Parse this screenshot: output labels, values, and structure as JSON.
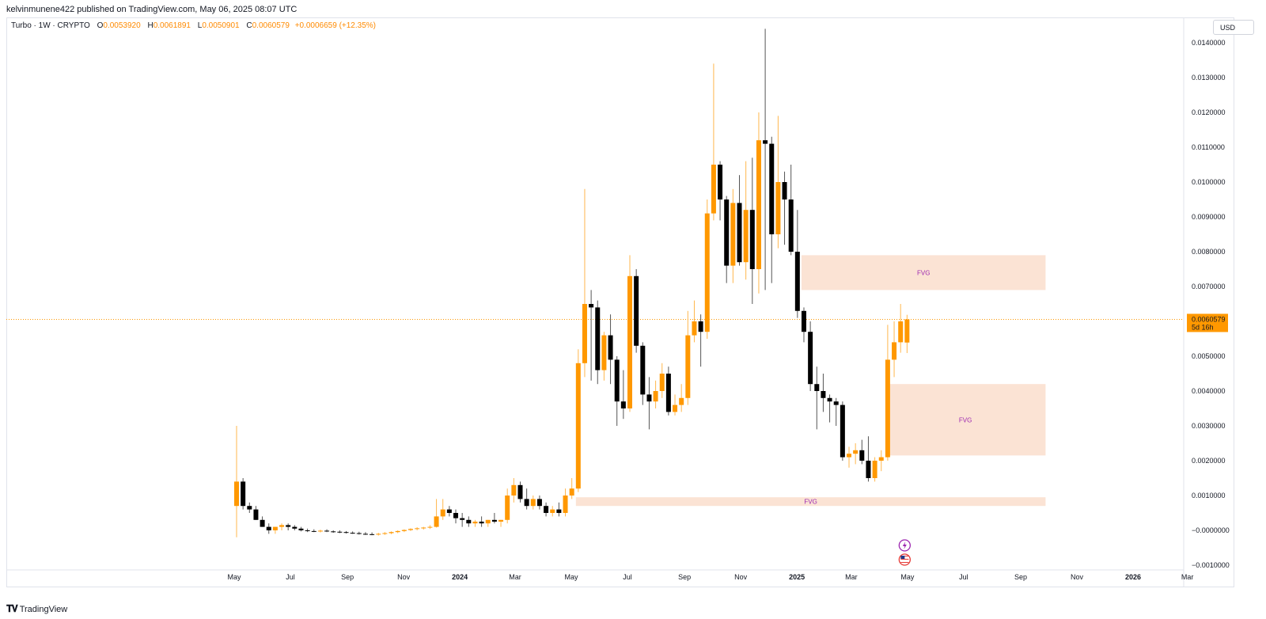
{
  "header": {
    "published": "kelvinmunene422 published on TradingView.com, May 06, 2025 08:07 UTC"
  },
  "legend": {
    "symbol": "Turbo · 1W · CRYPTO",
    "o_label": "O",
    "o": "0.0053920",
    "h_label": "H",
    "h": "0.0061891",
    "l_label": "L",
    "l": "0.0050901",
    "c_label": "C",
    "c": "0.0060579",
    "change": "+0.0006659 (+12.35%)"
  },
  "price_axis": {
    "currency": "USD",
    "current_price": "0.0060579",
    "countdown": "5d 16h"
  },
  "footer": {
    "brand": "TradingView"
  },
  "colors": {
    "up": "#ff9800",
    "down": "#000000",
    "fvg_fill": "#fbe3d4",
    "fvg_text": "#9c27b0",
    "price_line": "#ff9800"
  },
  "icons": [
    "lightning-event-icon",
    "us-flag-event-icon"
  ],
  "chart_data": {
    "type": "candlestick",
    "interval": "1W",
    "ylim": [
      -0.001,
      0.0145
    ],
    "y_ticks": [
      "0.0140000",
      "0.0130000",
      "0.0120000",
      "0.0110000",
      "0.0100000",
      "0.0090000",
      "0.0080000",
      "0.0070000",
      "0.0050000",
      "0.0040000",
      "0.0030000",
      "0.0020000",
      "0.0010000",
      "−0.0000000",
      "−0.0010000"
    ],
    "x_ticks": [
      "May",
      "Jul",
      "Sep",
      "Nov",
      "2024",
      "Mar",
      "May",
      "Jul",
      "Sep",
      "Nov",
      "2025",
      "Mar",
      "May",
      "Jul",
      "Sep",
      "Nov",
      "2026",
      "Mar"
    ],
    "x_ticks_bold": [
      "2024",
      "2025",
      "2026"
    ],
    "grid": false,
    "candles": [
      {
        "week": "2023-05-01",
        "o": 0.0007,
        "h": 0.003,
        "l": -0.0002,
        "c": 0.0014
      },
      {
        "week": "2023-05-08",
        "o": 0.0014,
        "h": 0.0015,
        "l": 0.0006,
        "c": 0.0007
      },
      {
        "week": "2023-05-15",
        "o": 0.0007,
        "h": 0.0008,
        "l": 0.0005,
        "c": 0.0006
      },
      {
        "week": "2023-05-22",
        "o": 0.0006,
        "h": 0.0007,
        "l": 0.0003,
        "c": 0.0003
      },
      {
        "week": "2023-05-29",
        "o": 0.0003,
        "h": 0.0004,
        "l": 0.0001,
        "c": 0.0001
      },
      {
        "week": "2023-06-05",
        "o": 0.0001,
        "h": 0.0002,
        "l": -0.0001,
        "c": 0.0
      },
      {
        "week": "2023-06-12",
        "o": 0.0,
        "h": 0.0001,
        "l": -0.0001,
        "c": 0.0001
      },
      {
        "week": "2023-06-19",
        "o": 0.0001,
        "h": 0.0002,
        "l": 0.0,
        "c": 0.00015
      },
      {
        "week": "2023-06-26",
        "o": 0.00015,
        "h": 0.0002,
        "l": 0.0,
        "c": 0.0001
      },
      {
        "week": "2023-07-03",
        "o": 0.0001,
        "h": 0.00015,
        "l": 0.0,
        "c": 5e-05
      },
      {
        "week": "2023-07-10",
        "o": 5e-05,
        "h": 0.0001,
        "l": -3e-05,
        "c": 0.0
      },
      {
        "week": "2023-07-17",
        "o": 0.0,
        "h": 5e-05,
        "l": -5e-05,
        "c": -2e-05
      },
      {
        "week": "2023-07-24",
        "o": -2e-05,
        "h": 3e-05,
        "l": -5e-05,
        "c": -3e-05
      },
      {
        "week": "2023-07-31",
        "o": -3e-05,
        "h": 2e-05,
        "l": -6e-05,
        "c": -1e-05
      },
      {
        "week": "2023-08-07",
        "o": -1e-05,
        "h": 3e-05,
        "l": -5e-05,
        "c": -3e-05
      },
      {
        "week": "2023-08-14",
        "o": -3e-05,
        "h": 0.0,
        "l": -7e-05,
        "c": -4e-05
      },
      {
        "week": "2023-08-21",
        "o": -4e-05,
        "h": 0.0,
        "l": -8e-05,
        "c": -5e-05
      },
      {
        "week": "2023-08-28",
        "o": -5e-05,
        "h": -2e-05,
        "l": -9e-05,
        "c": -7e-05
      },
      {
        "week": "2023-09-04",
        "o": -7e-05,
        "h": -3e-05,
        "l": -0.0001,
        "c": -8e-05
      },
      {
        "week": "2023-09-11",
        "o": -8e-05,
        "h": -4e-05,
        "l": -0.00012,
        "c": -0.0001
      },
      {
        "week": "2023-09-18",
        "o": -0.0001,
        "h": -5e-05,
        "l": -0.00013,
        "c": -0.00011
      },
      {
        "week": "2023-09-25",
        "o": -0.00011,
        "h": -6e-05,
        "l": -0.00014,
        "c": -0.00012
      },
      {
        "week": "2023-10-02",
        "o": -0.00012,
        "h": -7e-05,
        "l": -0.00015,
        "c": -0.0001
      },
      {
        "week": "2023-10-09",
        "o": -0.0001,
        "h": -5e-05,
        "l": -0.00013,
        "c": -8e-05
      },
      {
        "week": "2023-10-16",
        "o": -8e-05,
        "h": -3e-05,
        "l": -0.00011,
        "c": -5e-05
      },
      {
        "week": "2023-10-23",
        "o": -5e-05,
        "h": 0.0,
        "l": -8e-05,
        "c": -2e-05
      },
      {
        "week": "2023-10-30",
        "o": -2e-05,
        "h": 3e-05,
        "l": -5e-05,
        "c": 1e-05
      },
      {
        "week": "2023-11-06",
        "o": 1e-05,
        "h": 6e-05,
        "l": -2e-05,
        "c": 4e-05
      },
      {
        "week": "2023-11-13",
        "o": 4e-05,
        "h": 9e-05,
        "l": 0.0,
        "c": 6e-05
      },
      {
        "week": "2023-11-20",
        "o": 6e-05,
        "h": 0.0001,
        "l": 2e-05,
        "c": 8e-05
      },
      {
        "week": "2023-11-27",
        "o": 8e-05,
        "h": 0.00015,
        "l": 4e-05,
        "c": 0.0001
      },
      {
        "week": "2023-12-04",
        "o": 0.0001,
        "h": 0.0009,
        "l": 8e-05,
        "c": 0.0004
      },
      {
        "week": "2023-12-11",
        "o": 0.0004,
        "h": 0.0009,
        "l": 0.0003,
        "c": 0.0006
      },
      {
        "week": "2023-12-18",
        "o": 0.0006,
        "h": 0.0007,
        "l": 0.0004,
        "c": 0.0005
      },
      {
        "week": "2023-12-25",
        "o": 0.0005,
        "h": 0.0006,
        "l": 0.0002,
        "c": 0.00035
      },
      {
        "week": "2024-01-01",
        "o": 0.00035,
        "h": 0.0005,
        "l": 0.0001,
        "c": 0.0003
      },
      {
        "week": "2024-01-08",
        "o": 0.0003,
        "h": 0.0004,
        "l": 0.0001,
        "c": 0.0002
      },
      {
        "week": "2024-01-15",
        "o": 0.0002,
        "h": 0.0003,
        "l": 0.0001,
        "c": 0.00025
      },
      {
        "week": "2024-01-22",
        "o": 0.00025,
        "h": 0.0004,
        "l": 0.0001,
        "c": 0.0002
      },
      {
        "week": "2024-01-29",
        "o": 0.0002,
        "h": 0.0003,
        "l": 0.0001,
        "c": 0.0003
      },
      {
        "week": "2024-02-05",
        "o": 0.0003,
        "h": 0.0005,
        "l": 0.0002,
        "c": 0.00025
      },
      {
        "week": "2024-02-12",
        "o": 0.00025,
        "h": 0.0003,
        "l": 0.0001,
        "c": 0.0003
      },
      {
        "week": "2024-02-19",
        "o": 0.0003,
        "h": 0.0012,
        "l": 0.0002,
        "c": 0.001
      },
      {
        "week": "2024-02-26",
        "o": 0.001,
        "h": 0.0015,
        "l": 0.0008,
        "c": 0.0013
      },
      {
        "week": "2024-03-04",
        "o": 0.0013,
        "h": 0.0014,
        "l": 0.0008,
        "c": 0.0009
      },
      {
        "week": "2024-03-11",
        "o": 0.0009,
        "h": 0.0012,
        "l": 0.0006,
        "c": 0.0007
      },
      {
        "week": "2024-03-18",
        "o": 0.0007,
        "h": 0.001,
        "l": 0.0006,
        "c": 0.0009
      },
      {
        "week": "2024-03-25",
        "o": 0.0009,
        "h": 0.001,
        "l": 0.0006,
        "c": 0.0007
      },
      {
        "week": "2024-04-01",
        "o": 0.0007,
        "h": 0.0008,
        "l": 0.0004,
        "c": 0.0005
      },
      {
        "week": "2024-04-08",
        "o": 0.0005,
        "h": 0.0007,
        "l": 0.0004,
        "c": 0.0006
      },
      {
        "week": "2024-04-15",
        "o": 0.0006,
        "h": 0.0008,
        "l": 0.0004,
        "c": 0.0005
      },
      {
        "week": "2024-04-22",
        "o": 0.0005,
        "h": 0.0012,
        "l": 0.0004,
        "c": 0.001
      },
      {
        "week": "2024-04-29",
        "o": 0.001,
        "h": 0.0015,
        "l": 0.0009,
        "c": 0.0012
      },
      {
        "week": "2024-05-06",
        "o": 0.0012,
        "h": 0.0052,
        "l": 0.0011,
        "c": 0.0048
      },
      {
        "week": "2024-05-13",
        "o": 0.0048,
        "h": 0.0098,
        "l": 0.0044,
        "c": 0.0065
      },
      {
        "week": "2024-05-20",
        "o": 0.0065,
        "h": 0.0069,
        "l": 0.0043,
        "c": 0.0064
      },
      {
        "week": "2024-05-27",
        "o": 0.0064,
        "h": 0.0066,
        "l": 0.0042,
        "c": 0.0046
      },
      {
        "week": "2024-06-03",
        "o": 0.0046,
        "h": 0.0057,
        "l": 0.0043,
        "c": 0.0056
      },
      {
        "week": "2024-06-10",
        "o": 0.0056,
        "h": 0.0062,
        "l": 0.0042,
        "c": 0.0049
      },
      {
        "week": "2024-06-17",
        "o": 0.0049,
        "h": 0.005,
        "l": 0.003,
        "c": 0.0037
      },
      {
        "week": "2024-06-24",
        "o": 0.0037,
        "h": 0.0046,
        "l": 0.0032,
        "c": 0.0035
      },
      {
        "week": "2024-07-01",
        "o": 0.0035,
        "h": 0.0079,
        "l": 0.0034,
        "c": 0.0073
      },
      {
        "week": "2024-07-08",
        "o": 0.0073,
        "h": 0.0075,
        "l": 0.0051,
        "c": 0.0053
      },
      {
        "week": "2024-07-15",
        "o": 0.0053,
        "h": 0.0054,
        "l": 0.0036,
        "c": 0.0039
      },
      {
        "week": "2024-07-22",
        "o": 0.0039,
        "h": 0.0044,
        "l": 0.0029,
        "c": 0.0037
      },
      {
        "week": "2024-07-29",
        "o": 0.0037,
        "h": 0.0043,
        "l": 0.0035,
        "c": 0.004
      },
      {
        "week": "2024-08-05",
        "o": 0.004,
        "h": 0.0048,
        "l": 0.0038,
        "c": 0.0045
      },
      {
        "week": "2024-08-12",
        "o": 0.0045,
        "h": 0.0047,
        "l": 0.0033,
        "c": 0.0034
      },
      {
        "week": "2024-08-19",
        "o": 0.0034,
        "h": 0.0039,
        "l": 0.0033,
        "c": 0.0036
      },
      {
        "week": "2024-08-26",
        "o": 0.0036,
        "h": 0.0042,
        "l": 0.0034,
        "c": 0.0038
      },
      {
        "week": "2024-09-02",
        "o": 0.0038,
        "h": 0.0063,
        "l": 0.0036,
        "c": 0.0056
      },
      {
        "week": "2024-09-09",
        "o": 0.0056,
        "h": 0.0066,
        "l": 0.0054,
        "c": 0.006
      },
      {
        "week": "2024-09-16",
        "o": 0.006,
        "h": 0.0062,
        "l": 0.0047,
        "c": 0.0057
      },
      {
        "week": "2024-09-23",
        "o": 0.0057,
        "h": 0.0095,
        "l": 0.0055,
        "c": 0.0091
      },
      {
        "week": "2024-09-30",
        "o": 0.0091,
        "h": 0.0134,
        "l": 0.0089,
        "c": 0.0105
      },
      {
        "week": "2024-10-07",
        "o": 0.0105,
        "h": 0.0106,
        "l": 0.0089,
        "c": 0.0095
      },
      {
        "week": "2024-10-14",
        "o": 0.0095,
        "h": 0.0096,
        "l": 0.0071,
        "c": 0.0076
      },
      {
        "week": "2024-10-21",
        "o": 0.0076,
        "h": 0.0098,
        "l": 0.0071,
        "c": 0.0094
      },
      {
        "week": "2024-10-28",
        "o": 0.0094,
        "h": 0.0102,
        "l": 0.0076,
        "c": 0.0077
      },
      {
        "week": "2024-11-04",
        "o": 0.0077,
        "h": 0.0106,
        "l": 0.0072,
        "c": 0.0092
      },
      {
        "week": "2024-11-11",
        "o": 0.0092,
        "h": 0.0107,
        "l": 0.0065,
        "c": 0.0075
      },
      {
        "week": "2024-11-18",
        "o": 0.0075,
        "h": 0.012,
        "l": 0.0068,
        "c": 0.0112
      },
      {
        "week": "2024-11-25",
        "o": 0.0112,
        "h": 0.0144,
        "l": 0.0069,
        "c": 0.0111
      },
      {
        "week": "2024-12-02",
        "o": 0.0111,
        "h": 0.0113,
        "l": 0.0071,
        "c": 0.0085
      },
      {
        "week": "2024-12-09",
        "o": 0.0085,
        "h": 0.0119,
        "l": 0.0081,
        "c": 0.01
      },
      {
        "week": "2024-12-16",
        "o": 0.01,
        "h": 0.0103,
        "l": 0.0082,
        "c": 0.0095
      },
      {
        "week": "2024-12-23",
        "o": 0.0095,
        "h": 0.0105,
        "l": 0.0079,
        "c": 0.008
      },
      {
        "week": "2024-12-30",
        "o": 0.008,
        "h": 0.0092,
        "l": 0.0061,
        "c": 0.0063
      },
      {
        "week": "2025-01-06",
        "o": 0.0063,
        "h": 0.0064,
        "l": 0.0054,
        "c": 0.0057
      },
      {
        "week": "2025-01-13",
        "o": 0.0057,
        "h": 0.006,
        "l": 0.004,
        "c": 0.0042
      },
      {
        "week": "2025-01-20",
        "o": 0.0042,
        "h": 0.0047,
        "l": 0.0029,
        "c": 0.004
      },
      {
        "week": "2025-01-27",
        "o": 0.004,
        "h": 0.0045,
        "l": 0.0034,
        "c": 0.0038
      },
      {
        "week": "2025-02-03",
        "o": 0.0038,
        "h": 0.0039,
        "l": 0.0031,
        "c": 0.0037
      },
      {
        "week": "2025-02-10",
        "o": 0.0037,
        "h": 0.0038,
        "l": 0.003,
        "c": 0.0036
      },
      {
        "week": "2025-02-17",
        "o": 0.0036,
        "h": 0.0037,
        "l": 0.002,
        "c": 0.0021
      },
      {
        "week": "2025-02-24",
        "o": 0.0021,
        "h": 0.0024,
        "l": 0.0018,
        "c": 0.0022
      },
      {
        "week": "2025-03-03",
        "o": 0.0022,
        "h": 0.0025,
        "l": 0.0019,
        "c": 0.0023
      },
      {
        "week": "2025-03-10",
        "o": 0.0023,
        "h": 0.0026,
        "l": 0.0019,
        "c": 0.002
      },
      {
        "week": "2025-03-17",
        "o": 0.002,
        "h": 0.0027,
        "l": 0.0014,
        "c": 0.0015
      },
      {
        "week": "2025-03-24",
        "o": 0.0015,
        "h": 0.0021,
        "l": 0.0014,
        "c": 0.002
      },
      {
        "week": "2025-03-31",
        "o": 0.002,
        "h": 0.0023,
        "l": 0.0017,
        "c": 0.0021
      },
      {
        "week": "2025-04-07",
        "o": 0.0021,
        "h": 0.0059,
        "l": 0.002,
        "c": 0.0049
      },
      {
        "week": "2025-04-14",
        "o": 0.0049,
        "h": 0.006,
        "l": 0.0044,
        "c": 0.0054
      },
      {
        "week": "2025-04-21",
        "o": 0.0054,
        "h": 0.0065,
        "l": 0.0051,
        "c": 0.006
      },
      {
        "week": "2025-04-28",
        "o": 0.005392,
        "h": 0.0061891,
        "l": 0.0050901,
        "c": 0.0060579
      }
    ],
    "zones": [
      {
        "label": "FVG",
        "from": "2025-01-06",
        "to": "2025-09-28",
        "low": 0.0069,
        "high": 0.0079
      },
      {
        "label": "FVG",
        "from": "2025-04-07",
        "to": "2025-09-28",
        "low": 0.00215,
        "high": 0.0042
      },
      {
        "label": "FVG",
        "from": "2024-05-06",
        "to": "2025-09-28",
        "low": 0.0007,
        "high": 0.00095
      }
    ],
    "last_price": 0.0060579
  }
}
